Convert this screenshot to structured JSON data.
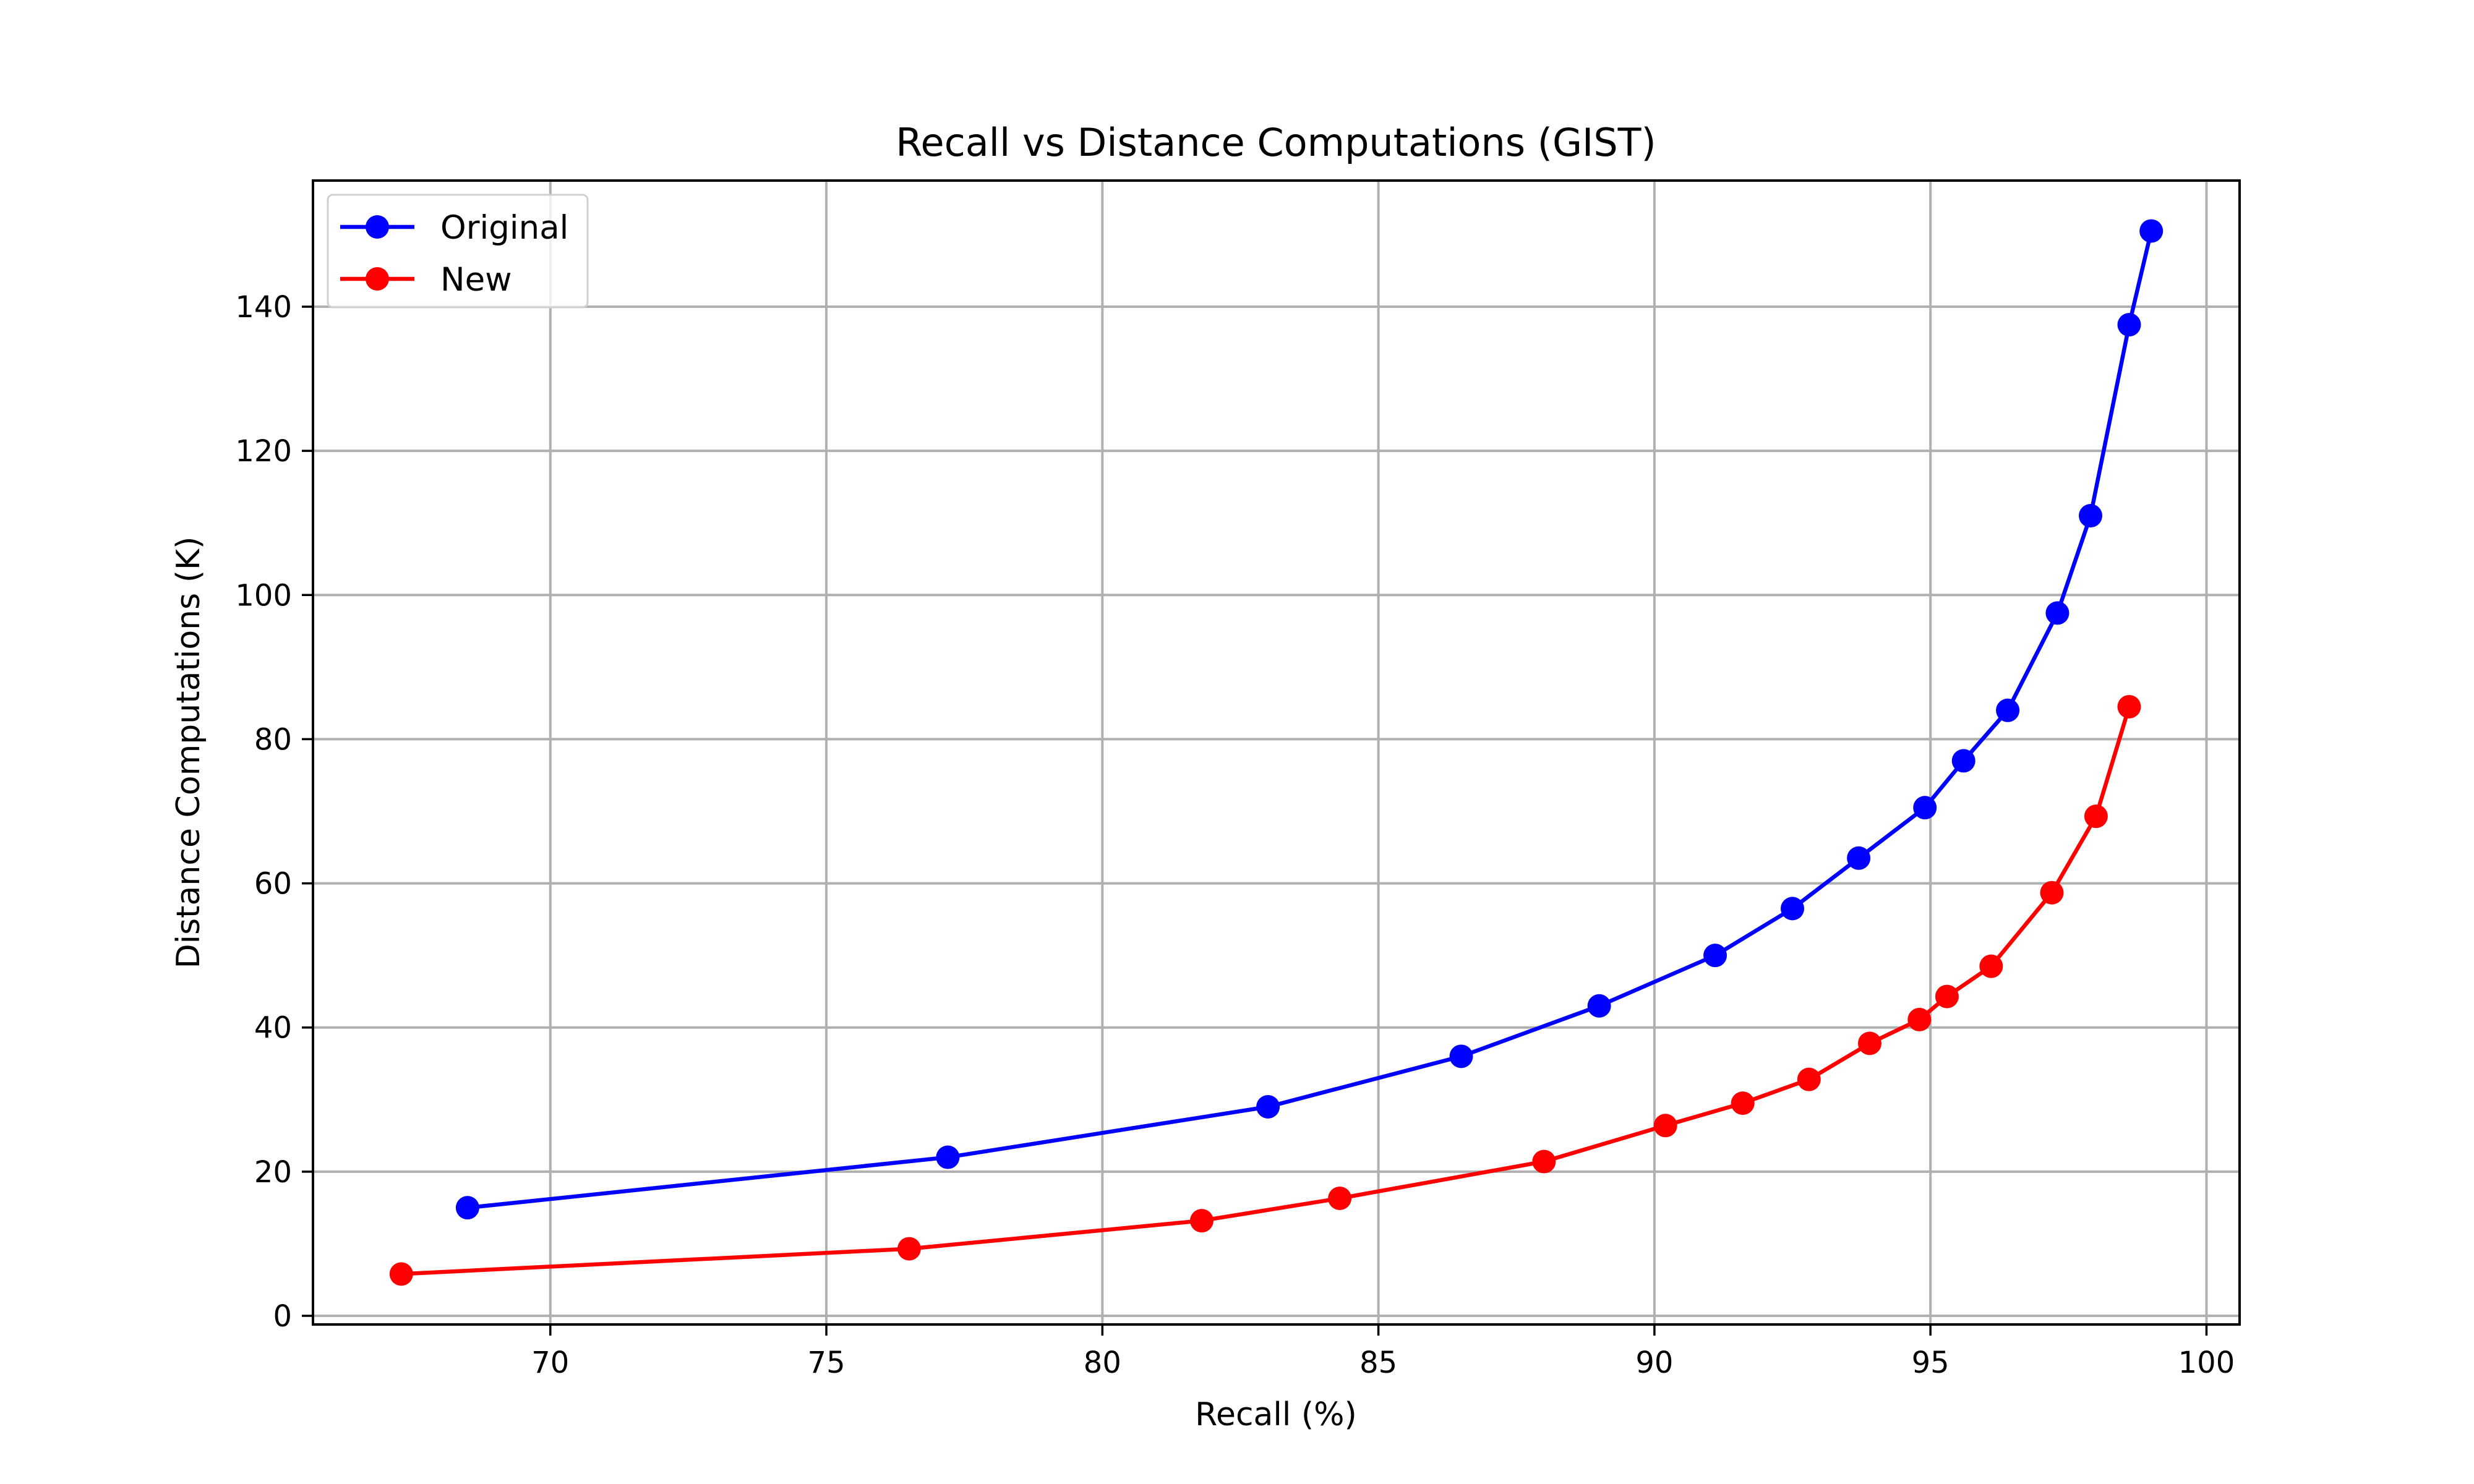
{
  "chart_data": {
    "type": "line",
    "title": "Recall vs Distance Computations (GIST)",
    "xlabel": "Recall (%)",
    "ylabel": "Distance Computations (K)",
    "xlim": [
      65.7,
      100.6
    ],
    "ylim": [
      -1.2,
      157.5
    ],
    "xticks": [
      70,
      75,
      80,
      85,
      90,
      95,
      100
    ],
    "yticks": [
      0,
      20,
      40,
      60,
      80,
      100,
      120,
      140
    ],
    "grid": true,
    "legend_position": "top-left",
    "series": [
      {
        "name": "Original",
        "color": "#0000ff",
        "x": [
          68.5,
          77.2,
          83.0,
          86.5,
          89.0,
          91.1,
          92.5,
          93.7,
          94.9,
          95.6,
          96.4,
          97.3,
          97.9,
          98.6,
          99.0
        ],
        "y": [
          15.0,
          22.0,
          29.0,
          36.0,
          43.0,
          50.0,
          56.5,
          63.5,
          70.5,
          77.0,
          84.0,
          97.5,
          111.0,
          137.5,
          150.5
        ]
      },
      {
        "name": "New",
        "color": "#ff0000",
        "x": [
          67.3,
          76.5,
          81.8,
          84.3,
          88.0,
          90.2,
          91.6,
          92.8,
          93.9,
          94.8,
          95.3,
          96.1,
          97.2,
          98.0,
          98.6
        ],
        "y": [
          5.8,
          9.3,
          13.2,
          16.3,
          21.4,
          26.4,
          29.5,
          32.8,
          37.8,
          41.1,
          44.3,
          48.5,
          58.7,
          69.3,
          84.5
        ]
      }
    ]
  }
}
